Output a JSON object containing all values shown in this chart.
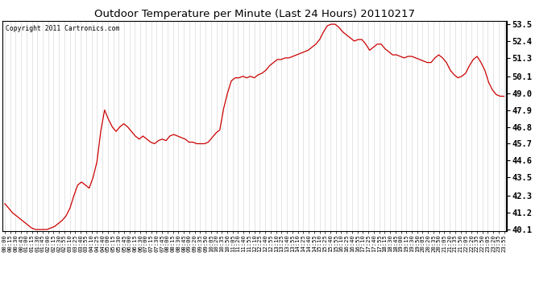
{
  "title": "Outdoor Temperature per Minute (Last 24 Hours) 20110217",
  "copyright_text": "Copyright 2011 Cartronics.com",
  "line_color": "#cc0000",
  "bg_color": "#ffffff",
  "plot_bg_color": "#ffffff",
  "grid_color": "#cccccc",
  "yticks": [
    40.1,
    41.2,
    42.3,
    43.5,
    44.6,
    45.7,
    46.8,
    47.9,
    49.0,
    50.1,
    51.3,
    52.4,
    53.5
  ],
  "ymin": 40.0,
  "ymax": 53.7,
  "xtick_labels": [
    "00:00",
    "00:15",
    "00:30",
    "00:45",
    "01:00",
    "01:15",
    "01:30",
    "01:45",
    "02:00",
    "02:15",
    "02:30",
    "02:55",
    "03:10",
    "03:25",
    "03:40",
    "03:55",
    "04:10",
    "04:25",
    "04:40",
    "05:00",
    "05:15",
    "05:30",
    "05:45",
    "06:00",
    "06:15",
    "06:30",
    "07:00",
    "07:15",
    "07:30",
    "07:45",
    "08:00",
    "08:15",
    "08:30",
    "08:45",
    "09:00",
    "09:20",
    "09:35",
    "09:50",
    "10:05",
    "10:20",
    "10:35",
    "10:50",
    "11:05",
    "11:20",
    "11:40",
    "11:55",
    "12:10",
    "12:25",
    "12:40",
    "12:55",
    "13:10",
    "13:25",
    "13:40",
    "13:55",
    "14:10",
    "14:25",
    "14:40",
    "14:55",
    "15:10",
    "15:25",
    "15:40",
    "15:55",
    "16:10",
    "16:25",
    "16:40",
    "16:55",
    "17:10",
    "17:25",
    "17:40",
    "17:55",
    "18:15",
    "18:30",
    "18:45",
    "19:00",
    "19:15",
    "19:30",
    "19:50",
    "20:05",
    "20:20",
    "20:35",
    "20:50",
    "21:05",
    "21:20",
    "21:35",
    "21:50",
    "22:05",
    "22:20",
    "22:35",
    "22:50",
    "23:05",
    "23:20",
    "23:35",
    "23:55"
  ],
  "temperature_data": [
    41.8,
    41.5,
    41.2,
    41.0,
    40.8,
    40.6,
    40.4,
    40.2,
    40.1,
    40.1,
    40.1,
    40.1,
    40.2,
    40.3,
    40.5,
    40.7,
    41.0,
    41.5,
    42.3,
    43.0,
    43.2,
    43.0,
    42.8,
    43.5,
    44.5,
    46.5,
    47.9,
    47.3,
    46.8,
    46.5,
    46.8,
    47.0,
    46.8,
    46.5,
    46.2,
    46.0,
    46.2,
    46.0,
    45.8,
    45.7,
    45.9,
    46.0,
    45.9,
    46.2,
    46.3,
    46.2,
    46.1,
    46.0,
    45.8,
    45.8,
    45.7,
    45.7,
    45.7,
    45.8,
    46.1,
    46.4,
    46.6,
    48.0,
    49.0,
    49.8,
    50.0,
    50.0,
    50.1,
    50.0,
    50.1,
    50.0,
    50.2,
    50.3,
    50.5,
    50.8,
    51.0,
    51.2,
    51.2,
    51.3,
    51.3,
    51.4,
    51.5,
    51.6,
    51.7,
    51.8,
    52.0,
    52.2,
    52.5,
    53.0,
    53.4,
    53.5,
    53.5,
    53.3,
    53.0,
    52.8,
    52.6,
    52.4,
    52.5,
    52.5,
    52.2,
    51.8,
    52.0,
    52.2,
    52.2,
    51.9,
    51.7,
    51.5,
    51.5,
    51.4,
    51.3,
    51.4,
    51.4,
    51.3,
    51.2,
    51.1,
    51.0,
    51.0,
    51.3,
    51.5,
    51.3,
    51.0,
    50.5,
    50.2,
    50.0,
    50.1,
    50.3,
    50.8,
    51.2,
    51.4,
    51.0,
    50.5,
    49.7,
    49.2,
    48.9,
    48.8,
    48.8
  ]
}
